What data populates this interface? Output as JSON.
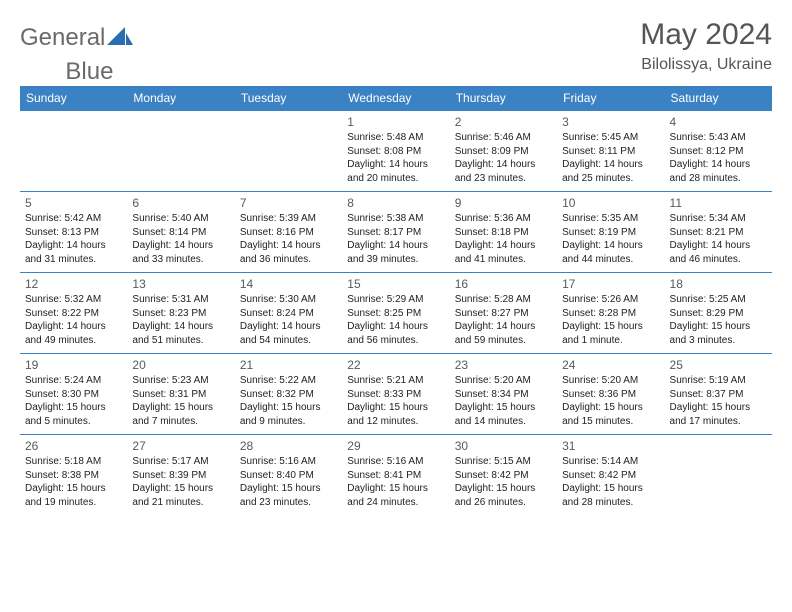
{
  "brand": {
    "part1": "General",
    "part2": "Blue"
  },
  "title": "May 2024",
  "location": "Bilolissya, Ukraine",
  "colors": {
    "header_bg": "#3b82c4",
    "header_text": "#ffffff",
    "border": "#3b82c4",
    "brand_gray": "#6a6a6a",
    "brand_blue": "#2a6db0",
    "text": "#222222",
    "daynum": "#58595b"
  },
  "day_headers": [
    "Sunday",
    "Monday",
    "Tuesday",
    "Wednesday",
    "Thursday",
    "Friday",
    "Saturday"
  ],
  "weeks": [
    [
      {
        "num": "",
        "lines": []
      },
      {
        "num": "",
        "lines": []
      },
      {
        "num": "",
        "lines": []
      },
      {
        "num": "1",
        "lines": [
          "Sunrise: 5:48 AM",
          "Sunset: 8:08 PM",
          "Daylight: 14 hours",
          "and 20 minutes."
        ]
      },
      {
        "num": "2",
        "lines": [
          "Sunrise: 5:46 AM",
          "Sunset: 8:09 PM",
          "Daylight: 14 hours",
          "and 23 minutes."
        ]
      },
      {
        "num": "3",
        "lines": [
          "Sunrise: 5:45 AM",
          "Sunset: 8:11 PM",
          "Daylight: 14 hours",
          "and 25 minutes."
        ]
      },
      {
        "num": "4",
        "lines": [
          "Sunrise: 5:43 AM",
          "Sunset: 8:12 PM",
          "Daylight: 14 hours",
          "and 28 minutes."
        ]
      }
    ],
    [
      {
        "num": "5",
        "lines": [
          "Sunrise: 5:42 AM",
          "Sunset: 8:13 PM",
          "Daylight: 14 hours",
          "and 31 minutes."
        ]
      },
      {
        "num": "6",
        "lines": [
          "Sunrise: 5:40 AM",
          "Sunset: 8:14 PM",
          "Daylight: 14 hours",
          "and 33 minutes."
        ]
      },
      {
        "num": "7",
        "lines": [
          "Sunrise: 5:39 AM",
          "Sunset: 8:16 PM",
          "Daylight: 14 hours",
          "and 36 minutes."
        ]
      },
      {
        "num": "8",
        "lines": [
          "Sunrise: 5:38 AM",
          "Sunset: 8:17 PM",
          "Daylight: 14 hours",
          "and 39 minutes."
        ]
      },
      {
        "num": "9",
        "lines": [
          "Sunrise: 5:36 AM",
          "Sunset: 8:18 PM",
          "Daylight: 14 hours",
          "and 41 minutes."
        ]
      },
      {
        "num": "10",
        "lines": [
          "Sunrise: 5:35 AM",
          "Sunset: 8:19 PM",
          "Daylight: 14 hours",
          "and 44 minutes."
        ]
      },
      {
        "num": "11",
        "lines": [
          "Sunrise: 5:34 AM",
          "Sunset: 8:21 PM",
          "Daylight: 14 hours",
          "and 46 minutes."
        ]
      }
    ],
    [
      {
        "num": "12",
        "lines": [
          "Sunrise: 5:32 AM",
          "Sunset: 8:22 PM",
          "Daylight: 14 hours",
          "and 49 minutes."
        ]
      },
      {
        "num": "13",
        "lines": [
          "Sunrise: 5:31 AM",
          "Sunset: 8:23 PM",
          "Daylight: 14 hours",
          "and 51 minutes."
        ]
      },
      {
        "num": "14",
        "lines": [
          "Sunrise: 5:30 AM",
          "Sunset: 8:24 PM",
          "Daylight: 14 hours",
          "and 54 minutes."
        ]
      },
      {
        "num": "15",
        "lines": [
          "Sunrise: 5:29 AM",
          "Sunset: 8:25 PM",
          "Daylight: 14 hours",
          "and 56 minutes."
        ]
      },
      {
        "num": "16",
        "lines": [
          "Sunrise: 5:28 AM",
          "Sunset: 8:27 PM",
          "Daylight: 14 hours",
          "and 59 minutes."
        ]
      },
      {
        "num": "17",
        "lines": [
          "Sunrise: 5:26 AM",
          "Sunset: 8:28 PM",
          "Daylight: 15 hours",
          "and 1 minute."
        ]
      },
      {
        "num": "18",
        "lines": [
          "Sunrise: 5:25 AM",
          "Sunset: 8:29 PM",
          "Daylight: 15 hours",
          "and 3 minutes."
        ]
      }
    ],
    [
      {
        "num": "19",
        "lines": [
          "Sunrise: 5:24 AM",
          "Sunset: 8:30 PM",
          "Daylight: 15 hours",
          "and 5 minutes."
        ]
      },
      {
        "num": "20",
        "lines": [
          "Sunrise: 5:23 AM",
          "Sunset: 8:31 PM",
          "Daylight: 15 hours",
          "and 7 minutes."
        ]
      },
      {
        "num": "21",
        "lines": [
          "Sunrise: 5:22 AM",
          "Sunset: 8:32 PM",
          "Daylight: 15 hours",
          "and 9 minutes."
        ]
      },
      {
        "num": "22",
        "lines": [
          "Sunrise: 5:21 AM",
          "Sunset: 8:33 PM",
          "Daylight: 15 hours",
          "and 12 minutes."
        ]
      },
      {
        "num": "23",
        "lines": [
          "Sunrise: 5:20 AM",
          "Sunset: 8:34 PM",
          "Daylight: 15 hours",
          "and 14 minutes."
        ]
      },
      {
        "num": "24",
        "lines": [
          "Sunrise: 5:20 AM",
          "Sunset: 8:36 PM",
          "Daylight: 15 hours",
          "and 15 minutes."
        ]
      },
      {
        "num": "25",
        "lines": [
          "Sunrise: 5:19 AM",
          "Sunset: 8:37 PM",
          "Daylight: 15 hours",
          "and 17 minutes."
        ]
      }
    ],
    [
      {
        "num": "26",
        "lines": [
          "Sunrise: 5:18 AM",
          "Sunset: 8:38 PM",
          "Daylight: 15 hours",
          "and 19 minutes."
        ]
      },
      {
        "num": "27",
        "lines": [
          "Sunrise: 5:17 AM",
          "Sunset: 8:39 PM",
          "Daylight: 15 hours",
          "and 21 minutes."
        ]
      },
      {
        "num": "28",
        "lines": [
          "Sunrise: 5:16 AM",
          "Sunset: 8:40 PM",
          "Daylight: 15 hours",
          "and 23 minutes."
        ]
      },
      {
        "num": "29",
        "lines": [
          "Sunrise: 5:16 AM",
          "Sunset: 8:41 PM",
          "Daylight: 15 hours",
          "and 24 minutes."
        ]
      },
      {
        "num": "30",
        "lines": [
          "Sunrise: 5:15 AM",
          "Sunset: 8:42 PM",
          "Daylight: 15 hours",
          "and 26 minutes."
        ]
      },
      {
        "num": "31",
        "lines": [
          "Sunrise: 5:14 AM",
          "Sunset: 8:42 PM",
          "Daylight: 15 hours",
          "and 28 minutes."
        ]
      },
      {
        "num": "",
        "lines": []
      }
    ]
  ]
}
